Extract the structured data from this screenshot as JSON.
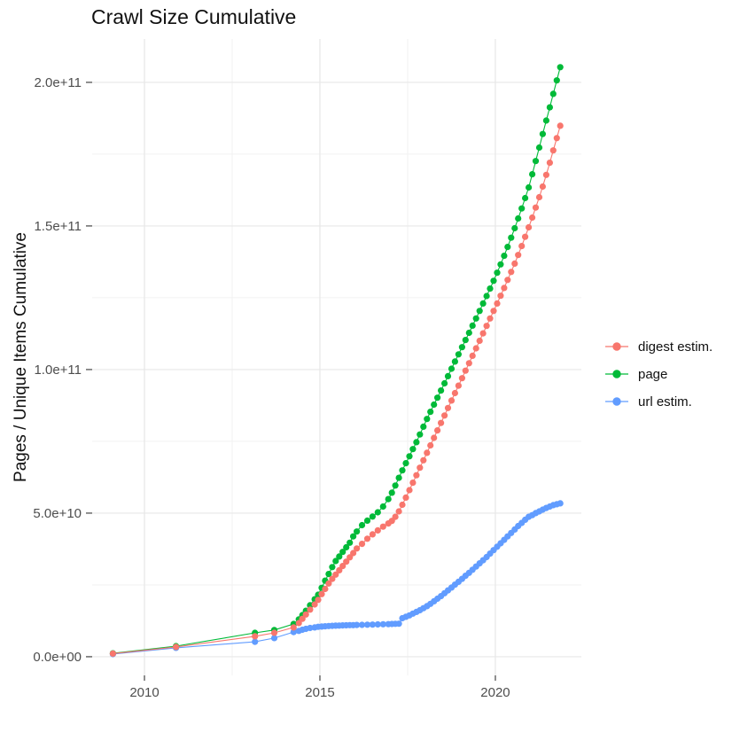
{
  "title": "Crawl Size Cumulative",
  "y_axis_title": "Pages / Unique Items Cumulative",
  "x_tick_labels": [
    "2010",
    "2015",
    "2020"
  ],
  "y_tick_labels": [
    "0.0e+00",
    "5.0e+10",
    "1.0e+11",
    "1.5e+11",
    "2.0e+11"
  ],
  "colors": {
    "grid_major": "#e7e7e7",
    "grid_minor": "#f2f2f2",
    "tick": "#333333",
    "tick_label": "#4d4d4d"
  },
  "legend": {
    "items": [
      {
        "label": "digest estim.",
        "color": "#F8766D"
      },
      {
        "label": "page",
        "color": "#00BA38"
      },
      {
        "label": "url estim.",
        "color": "#619CFF"
      }
    ]
  },
  "chart_data": {
    "type": "line",
    "title": "Crawl Size Cumulative",
    "xlabel": "",
    "ylabel": "Pages / Unique Items Cumulative",
    "x_unit": "year (decimal)",
    "values_unit": "items, in billions (1e9)",
    "grid": true,
    "legend_position": "right",
    "marker": "point-on-line",
    "xlim": [
      2008.51,
      2022.45
    ],
    "ylim_e9": [
      -6.5,
      215.1
    ],
    "x_major_ticks": [
      2010,
      2015,
      2020
    ],
    "x_minor_ticks": [
      2012.5,
      2017.5
    ],
    "y_major_ticks_e9": [
      0,
      50,
      100,
      150,
      200
    ],
    "y_minor_ticks_e9": [
      25,
      75,
      125,
      175
    ],
    "x": [
      2009.1,
      2010.9,
      2013.15,
      2013.7,
      2014.25,
      2014.4,
      2014.5,
      2014.6,
      2014.72,
      2014.85,
      2014.95,
      2015.05,
      2015.15,
      2015.25,
      2015.35,
      2015.45,
      2015.55,
      2015.65,
      2015.75,
      2015.85,
      2015.95,
      2016.05,
      2016.2,
      2016.35,
      2016.5,
      2016.65,
      2016.8,
      2016.95,
      2017.05,
      2017.15,
      2017.25,
      2017.35,
      2017.45,
      2017.55,
      2017.65,
      2017.75,
      2017.85,
      2017.95,
      2018.05,
      2018.15,
      2018.25,
      2018.35,
      2018.45,
      2018.55,
      2018.65,
      2018.75,
      2018.85,
      2018.95,
      2019.05,
      2019.15,
      2019.25,
      2019.35,
      2019.45,
      2019.55,
      2019.65,
      2019.75,
      2019.85,
      2019.95,
      2020.05,
      2020.15,
      2020.25,
      2020.35,
      2020.45,
      2020.55,
      2020.65,
      2020.75,
      2020.85,
      2020.95,
      2021.05,
      2021.15,
      2021.25,
      2021.35,
      2021.45,
      2021.55,
      2021.65,
      2021.75,
      2021.85
    ],
    "series": [
      {
        "name": "digest estim.",
        "color": "#F8766D",
        "values_e9": [
          1.1,
          3.4,
          7.1,
          8.3,
          10.2,
          11.7,
          13.2,
          14.7,
          16.4,
          18.2,
          19.8,
          21.8,
          23.6,
          25.5,
          27.1,
          28.6,
          30.1,
          31.6,
          33.1,
          34.6,
          36.1,
          37.7,
          39.3,
          41.1,
          42.6,
          44.0,
          45.3,
          46.4,
          47.3,
          48.7,
          50.6,
          52.9,
          55.4,
          58.0,
          60.6,
          63.2,
          65.8,
          68.4,
          71.0,
          73.6,
          76.2,
          78.8,
          81.4,
          84.0,
          86.6,
          89.2,
          91.8,
          94.4,
          97.0,
          99.6,
          102.2,
          104.8,
          107.4,
          110.0,
          112.6,
          115.2,
          117.8,
          120.4,
          123.0,
          125.7,
          128.4,
          131.2,
          134.0,
          136.9,
          139.9,
          143.0,
          146.2,
          149.5,
          152.9,
          156.4,
          160.0,
          163.7,
          167.8,
          172.0,
          176.3,
          180.6,
          184.9
        ]
      },
      {
        "name": "page",
        "color": "#00BA38",
        "values_e9": [
          1.2,
          3.7,
          8.3,
          9.3,
          11.4,
          13.0,
          14.5,
          16.0,
          17.9,
          20.0,
          21.6,
          24.0,
          26.5,
          28.8,
          31.2,
          33.3,
          34.9,
          36.5,
          38.1,
          39.7,
          41.9,
          43.6,
          45.8,
          47.4,
          48.8,
          50.3,
          52.3,
          54.9,
          57.1,
          59.6,
          62.3,
          64.9,
          67.4,
          69.8,
          72.3,
          74.7,
          77.4,
          80.1,
          82.8,
          85.3,
          87.8,
          90.2,
          92.7,
          95.2,
          97.7,
          100.3,
          102.8,
          105.3,
          107.8,
          110.3,
          112.8,
          115.3,
          117.8,
          120.4,
          123.0,
          125.6,
          128.2,
          130.9,
          133.7,
          136.6,
          139.6,
          142.7,
          145.9,
          149.2,
          152.6,
          156.1,
          159.7,
          163.4,
          168.0,
          172.6,
          177.3,
          182.0,
          186.7,
          191.3,
          196.0,
          200.7,
          205.3
        ]
      },
      {
        "name": "url estim.",
        "color": "#619CFF",
        "values_e9": [
          0.9,
          3.1,
          5.2,
          6.5,
          8.6,
          9.0,
          9.4,
          9.7,
          10.0,
          10.2,
          10.4,
          10.5,
          10.6,
          10.7,
          10.75,
          10.8,
          10.85,
          10.9,
          10.95,
          11.0,
          11.0,
          11.05,
          11.1,
          11.15,
          11.2,
          11.25,
          11.3,
          11.35,
          11.4,
          11.45,
          11.5,
          13.4,
          13.9,
          14.4,
          15.0,
          15.6,
          16.2,
          16.9,
          17.6,
          18.4,
          19.3,
          20.2,
          21.1,
          22.1,
          23.1,
          24.1,
          25.1,
          26.1,
          27.1,
          28.2,
          29.2,
          30.3,
          31.4,
          32.5,
          33.6,
          34.7,
          35.9,
          37.1,
          38.3,
          39.5,
          40.7,
          41.9,
          43.1,
          44.3,
          45.5,
          46.6,
          47.7,
          48.7,
          49.3,
          50.0,
          50.6,
          51.2,
          51.8,
          52.3,
          52.8,
          53.1,
          53.4
        ]
      }
    ]
  }
}
